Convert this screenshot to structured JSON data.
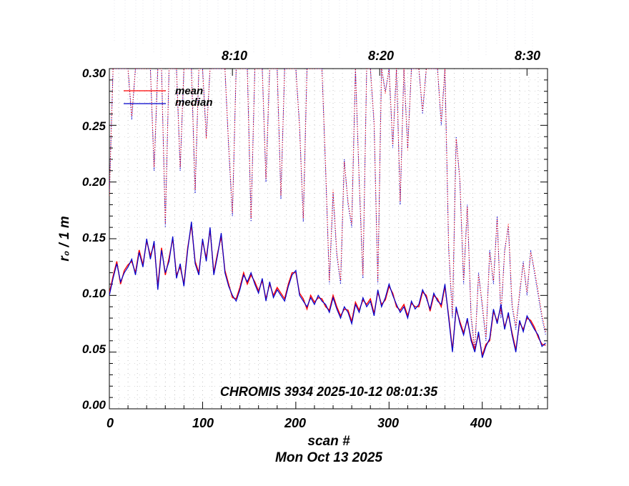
{
  "chart_data": {
    "type": "line",
    "title": "CHROMIS 3934 2025-10-12 08:01:35",
    "xlabel": "scan #",
    "xlabel2": "Mon Oct 13 2025",
    "ylabel": "r₀ / 1 m",
    "ylim": [
      0.0,
      0.3
    ],
    "xlim": [
      0,
      470
    ],
    "yticks": [
      "0.00",
      "0.05",
      "0.10",
      "0.15",
      "0.20",
      "0.25",
      "0.30"
    ],
    "xticks": [
      "0",
      "100",
      "200",
      "300",
      "400"
    ],
    "time_ticks": [
      {
        "label": "8:10",
        "scan": 132
      },
      {
        "label": "8:20",
        "scan": 290
      },
      {
        "label": "8:30",
        "scan": 448
      }
    ],
    "grid": true,
    "legend": [
      {
        "name": "mean",
        "color": "#ff0000"
      },
      {
        "name": "median",
        "color": "#0000cc"
      }
    ],
    "series": [
      {
        "name": "median",
        "style": "solid",
        "color": "#0000cc",
        "x": [
          0,
          4,
          8,
          12,
          16,
          20,
          24,
          28,
          32,
          36,
          40,
          44,
          48,
          52,
          56,
          60,
          64,
          68,
          72,
          76,
          80,
          84,
          88,
          92,
          96,
          100,
          104,
          108,
          112,
          116,
          120,
          124,
          128,
          132,
          136,
          140,
          144,
          148,
          152,
          156,
          160,
          164,
          168,
          172,
          176,
          180,
          184,
          188,
          192,
          196,
          200,
          204,
          208,
          212,
          216,
          220,
          224,
          228,
          232,
          236,
          240,
          244,
          248,
          252,
          256,
          260,
          264,
          268,
          272,
          276,
          280,
          284,
          288,
          292,
          296,
          300,
          304,
          308,
          312,
          316,
          320,
          324,
          328,
          332,
          336,
          340,
          344,
          348,
          352,
          356,
          360,
          364,
          368,
          372,
          376,
          380,
          384,
          388,
          392,
          396,
          400,
          404,
          408,
          412,
          416,
          420,
          424,
          428,
          432,
          436,
          440,
          444,
          448,
          452,
          456,
          460,
          464,
          468
        ],
        "values": [
          0.1,
          0.115,
          0.128,
          0.112,
          0.12,
          0.125,
          0.132,
          0.118,
          0.138,
          0.125,
          0.15,
          0.132,
          0.148,
          0.105,
          0.14,
          0.12,
          0.13,
          0.152,
          0.115,
          0.128,
          0.108,
          0.14,
          0.165,
          0.128,
          0.118,
          0.15,
          0.13,
          0.16,
          0.118,
          0.135,
          0.155,
          0.12,
          0.108,
          0.1,
          0.095,
          0.105,
          0.118,
          0.112,
          0.12,
          0.11,
          0.102,
          0.115,
          0.095,
          0.112,
          0.098,
          0.105,
          0.1,
          0.095,
          0.108,
          0.118,
          0.122,
          0.1,
          0.095,
          0.09,
          0.098,
          0.092,
          0.1,
          0.095,
          0.092,
          0.085,
          0.098,
          0.088,
          0.08,
          0.09,
          0.085,
          0.075,
          0.092,
          0.085,
          0.098,
          0.09,
          0.095,
          0.082,
          0.105,
          0.09,
          0.098,
          0.11,
          0.1,
          0.092,
          0.085,
          0.09,
          0.08,
          0.095,
          0.088,
          0.092,
          0.105,
          0.098,
          0.088,
          0.102,
          0.095,
          0.092,
          0.11,
          0.08,
          0.05,
          0.09,
          0.075,
          0.065,
          0.08,
          0.06,
          0.05,
          0.068,
          0.045,
          0.055,
          0.062,
          0.088,
          0.075,
          0.092,
          0.07,
          0.085,
          0.065,
          0.05,
          0.078,
          0.068,
          0.082,
          0.076,
          0.07,
          0.065,
          0.055,
          0.058
        ]
      },
      {
        "name": "mean",
        "style": "solid",
        "color": "#ff0000",
        "x": [
          0,
          4,
          8,
          12,
          16,
          20,
          24,
          28,
          32,
          36,
          40,
          44,
          48,
          52,
          56,
          60,
          64,
          68,
          72,
          76,
          80,
          84,
          88,
          92,
          96,
          100,
          104,
          108,
          112,
          116,
          120,
          124,
          128,
          132,
          136,
          140,
          144,
          148,
          152,
          156,
          160,
          164,
          168,
          172,
          176,
          180,
          184,
          188,
          192,
          196,
          200,
          204,
          208,
          212,
          216,
          220,
          224,
          228,
          232,
          236,
          240,
          244,
          248,
          252,
          256,
          260,
          264,
          268,
          272,
          276,
          280,
          284,
          288,
          292,
          296,
          300,
          304,
          308,
          312,
          316,
          320,
          324,
          328,
          332,
          336,
          340,
          344,
          348,
          352,
          356,
          360,
          364,
          368,
          372,
          376,
          380,
          384,
          388,
          392,
          396,
          400,
          404,
          408,
          412,
          416,
          420,
          424,
          428,
          432,
          436,
          440,
          444,
          448,
          452,
          456,
          460,
          464,
          468
        ],
        "values": [
          0.102,
          0.117,
          0.13,
          0.11,
          0.122,
          0.127,
          0.13,
          0.12,
          0.14,
          0.127,
          0.148,
          0.135,
          0.145,
          0.108,
          0.142,
          0.118,
          0.133,
          0.15,
          0.118,
          0.125,
          0.11,
          0.142,
          0.162,
          0.13,
          0.12,
          0.148,
          0.133,
          0.158,
          0.12,
          0.137,
          0.152,
          0.122,
          0.11,
          0.098,
          0.097,
          0.107,
          0.12,
          0.11,
          0.118,
          0.112,
          0.104,
          0.113,
          0.097,
          0.11,
          0.1,
          0.107,
          0.102,
          0.097,
          0.11,
          0.12,
          0.12,
          0.102,
          0.097,
          0.088,
          0.1,
          0.094,
          0.098,
          0.097,
          0.09,
          0.087,
          0.1,
          0.09,
          0.082,
          0.088,
          0.087,
          0.077,
          0.094,
          0.087,
          0.096,
          0.092,
          0.097,
          0.084,
          0.103,
          0.092,
          0.096,
          0.108,
          0.102,
          0.09,
          0.087,
          0.092,
          0.082,
          0.093,
          0.09,
          0.09,
          0.103,
          0.1,
          0.086,
          0.1,
          0.097,
          0.09,
          0.108,
          0.082,
          0.052,
          0.088,
          0.077,
          0.067,
          0.078,
          0.062,
          0.052,
          0.066,
          0.047,
          0.057,
          0.06,
          0.086,
          0.077,
          0.09,
          0.072,
          0.083,
          0.067,
          0.052,
          0.076,
          0.07,
          0.08,
          0.078,
          0.072,
          0.063,
          0.057,
          0.056
        ]
      },
      {
        "name": "median (dotted)",
        "style": "dotted",
        "color": "#0000cc",
        "x": [
          0,
          4,
          8,
          12,
          16,
          20,
          24,
          28,
          32,
          36,
          40,
          44,
          48,
          52,
          56,
          60,
          64,
          68,
          72,
          76,
          80,
          84,
          88,
          92,
          96,
          100,
          104,
          108,
          112,
          116,
          120,
          124,
          128,
          132,
          136,
          140,
          144,
          148,
          152,
          156,
          160,
          164,
          168,
          172,
          176,
          180,
          184,
          188,
          192,
          196,
          200,
          204,
          208,
          212,
          216,
          220,
          224,
          228,
          232,
          236,
          240,
          244,
          248,
          252,
          256,
          260,
          264,
          268,
          272,
          276,
          280,
          284,
          288,
          292,
          296,
          300,
          304,
          308,
          312,
          316,
          320,
          324,
          328,
          332,
          336,
          340,
          344,
          348,
          352,
          356,
          360,
          364,
          368,
          372,
          376,
          380,
          384,
          388,
          392,
          396,
          400,
          404,
          408,
          412,
          416,
          420,
          424,
          428,
          432,
          436,
          440,
          444,
          448,
          452,
          456,
          460,
          464,
          468
        ],
        "values": [
          0.19,
          0.3,
          0.3,
          0.3,
          0.3,
          0.3,
          0.255,
          0.3,
          0.3,
          0.3,
          0.3,
          0.3,
          0.21,
          0.3,
          0.3,
          0.16,
          0.3,
          0.3,
          0.3,
          0.21,
          0.3,
          0.3,
          0.3,
          0.19,
          0.3,
          0.3,
          0.24,
          0.3,
          0.3,
          0.3,
          0.3,
          0.3,
          0.23,
          0.17,
          0.3,
          0.3,
          0.3,
          0.3,
          0.165,
          0.3,
          0.3,
          0.3,
          0.2,
          0.3,
          0.3,
          0.3,
          0.185,
          0.3,
          0.3,
          0.3,
          0.3,
          0.25,
          0.165,
          0.3,
          0.3,
          0.3,
          0.3,
          0.3,
          0.21,
          0.11,
          0.19,
          0.135,
          0.11,
          0.22,
          0.18,
          0.16,
          0.3,
          0.2,
          0.115,
          0.3,
          0.3,
          0.25,
          0.11,
          0.3,
          0.28,
          0.3,
          0.23,
          0.3,
          0.18,
          0.3,
          0.23,
          0.3,
          0.3,
          0.3,
          0.26,
          0.3,
          0.3,
          0.3,
          0.3,
          0.25,
          0.3,
          0.14,
          0.08,
          0.24,
          0.2,
          0.11,
          0.18,
          0.08,
          0.05,
          0.12,
          0.09,
          0.06,
          0.14,
          0.11,
          0.17,
          0.08,
          0.14,
          0.16,
          0.09,
          0.07,
          0.1,
          0.13,
          0.1,
          0.14,
          0.12,
          0.1,
          0.08,
          0.065
        ]
      },
      {
        "name": "mean (dotted)",
        "style": "dotted",
        "color": "#ff0000",
        "x": [
          0,
          4,
          8,
          12,
          16,
          20,
          24,
          28,
          32,
          36,
          40,
          44,
          48,
          52,
          56,
          60,
          64,
          68,
          72,
          76,
          80,
          84,
          88,
          92,
          96,
          100,
          104,
          108,
          112,
          116,
          120,
          124,
          128,
          132,
          136,
          140,
          144,
          148,
          152,
          156,
          160,
          164,
          168,
          172,
          176,
          180,
          184,
          188,
          192,
          196,
          200,
          204,
          208,
          212,
          216,
          220,
          224,
          228,
          232,
          236,
          240,
          244,
          248,
          252,
          256,
          260,
          264,
          268,
          272,
          276,
          280,
          284,
          288,
          292,
          296,
          300,
          304,
          308,
          312,
          316,
          320,
          324,
          328,
          332,
          336,
          340,
          344,
          348,
          352,
          356,
          360,
          364,
          368,
          372,
          376,
          380,
          384,
          388,
          392,
          396,
          400,
          404,
          408,
          412,
          416,
          420,
          424,
          428,
          432,
          436,
          440,
          444,
          448,
          452,
          456,
          460,
          464,
          468
        ],
        "values": [
          0.188,
          0.3,
          0.3,
          0.3,
          0.3,
          0.3,
          0.258,
          0.3,
          0.3,
          0.3,
          0.3,
          0.3,
          0.213,
          0.3,
          0.3,
          0.163,
          0.3,
          0.3,
          0.3,
          0.213,
          0.3,
          0.3,
          0.3,
          0.193,
          0.3,
          0.3,
          0.238,
          0.3,
          0.3,
          0.3,
          0.3,
          0.3,
          0.233,
          0.173,
          0.3,
          0.3,
          0.3,
          0.3,
          0.168,
          0.3,
          0.3,
          0.3,
          0.203,
          0.3,
          0.3,
          0.3,
          0.188,
          0.3,
          0.3,
          0.3,
          0.3,
          0.248,
          0.168,
          0.3,
          0.3,
          0.3,
          0.3,
          0.3,
          0.213,
          0.113,
          0.193,
          0.138,
          0.113,
          0.218,
          0.183,
          0.163,
          0.3,
          0.203,
          0.118,
          0.3,
          0.3,
          0.253,
          0.113,
          0.3,
          0.278,
          0.3,
          0.233,
          0.3,
          0.183,
          0.3,
          0.228,
          0.3,
          0.3,
          0.3,
          0.263,
          0.3,
          0.3,
          0.3,
          0.3,
          0.253,
          0.3,
          0.143,
          0.083,
          0.238,
          0.203,
          0.113,
          0.178,
          0.083,
          0.053,
          0.118,
          0.093,
          0.063,
          0.138,
          0.113,
          0.168,
          0.083,
          0.138,
          0.163,
          0.093,
          0.073,
          0.103,
          0.128,
          0.103,
          0.138,
          0.123,
          0.103,
          0.083,
          0.068
        ]
      }
    ]
  }
}
